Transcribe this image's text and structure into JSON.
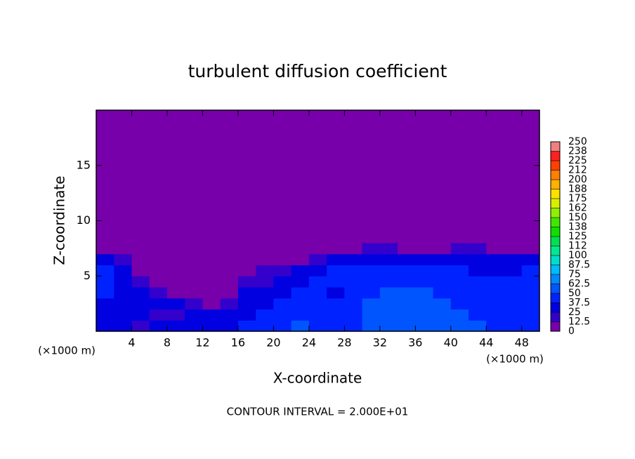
{
  "chart_data": {
    "type": "heatmap",
    "title": "turbulent diffusion coefficient",
    "x_label": "X-coordinate",
    "y_label": "Z-coordinate",
    "x_unit_label": "(×1000 m)",
    "footer": "CONTOUR INTERVAL = 2.000E+01",
    "xlim": [
      0,
      50
    ],
    "ylim": [
      0,
      20
    ],
    "xticks": [
      4,
      8,
      12,
      16,
      20,
      24,
      28,
      32,
      36,
      40,
      44,
      48
    ],
    "yticks": [
      5,
      10,
      15
    ],
    "xbins": [
      0,
      2,
      4,
      6,
      8,
      10,
      12,
      14,
      16,
      18,
      20,
      22,
      24,
      26,
      28,
      30,
      32,
      34,
      36,
      38,
      40,
      42,
      44,
      46,
      48,
      50
    ],
    "ybins": [
      0,
      1,
      2,
      3,
      4,
      5,
      6,
      7,
      8,
      20
    ],
    "z": [
      [
        30,
        25,
        20,
        25,
        30,
        35,
        30,
        35,
        40,
        45,
        45,
        50,
        45,
        45,
        45,
        50,
        55,
        60,
        55,
        55,
        50,
        50,
        45,
        45,
        45
      ],
      [
        35,
        30,
        25,
        20,
        20,
        30,
        25,
        30,
        35,
        40,
        45,
        45,
        40,
        40,
        45,
        50,
        55,
        55,
        60,
        50,
        50,
        45,
        45,
        40,
        45
      ],
      [
        35,
        30,
        30,
        25,
        25,
        20,
        10,
        15,
        30,
        35,
        40,
        45,
        40,
        40,
        45,
        50,
        50,
        60,
        60,
        50,
        45,
        45,
        40,
        40,
        40
      ],
      [
        40,
        35,
        30,
        20,
        10,
        5,
        5,
        10,
        25,
        30,
        35,
        40,
        40,
        35,
        45,
        45,
        50,
        50,
        55,
        45,
        45,
        40,
        40,
        40,
        40
      ],
      [
        45,
        30,
        15,
        10,
        5,
        5,
        5,
        5,
        20,
        20,
        30,
        35,
        40,
        40,
        40,
        45,
        45,
        45,
        45,
        40,
        40,
        40,
        40,
        40,
        40
      ],
      [
        40,
        25,
        5,
        5,
        0,
        0,
        0,
        0,
        10,
        15,
        20,
        30,
        35,
        40,
        40,
        40,
        40,
        45,
        40,
        40,
        40,
        35,
        35,
        35,
        40
      ],
      [
        30,
        15,
        0,
        0,
        0,
        0,
        0,
        0,
        0,
        0,
        5,
        10,
        20,
        25,
        30,
        35,
        35,
        35,
        30,
        35,
        30,
        30,
        30,
        30,
        30
      ],
      [
        0,
        0,
        0,
        0,
        0,
        0,
        0,
        0,
        0,
        0,
        0,
        0,
        0,
        5,
        10,
        15,
        15,
        10,
        0,
        10,
        15,
        20,
        10,
        5,
        0
      ],
      [
        0,
        0,
        0,
        0,
        0,
        0,
        0,
        0,
        0,
        0,
        0,
        0,
        0,
        0,
        0,
        0,
        0,
        0,
        0,
        0,
        0,
        0,
        0,
        0,
        0
      ]
    ],
    "levels": [
      0,
      12.5,
      25,
      37.5,
      50,
      62.5,
      75,
      87.5,
      100,
      {
        "value": 112.5,
        "label": "112"
      },
      125,
      {
        "value": 137.5,
        "label": "138"
      },
      150,
      {
        "value": 162.5,
        "label": "162"
      },
      175,
      {
        "value": 187.5,
        "label": "188"
      },
      200,
      {
        "value": 212.5,
        "label": "212"
      },
      225,
      {
        "value": 237.5,
        "label": "238"
      },
      250
    ],
    "colors": [
      "#7700aa",
      "#3300cc",
      "#0000e0",
      "#0022ff",
      "#0055ff",
      "#0088ff",
      "#00bbff",
      "#00ddcc",
      "#00e890",
      "#00e050",
      "#10e000",
      "#40e800",
      "#90f000",
      "#d8f000",
      "#ffe000",
      "#ffb000",
      "#ff8000",
      "#ff4000",
      "#ff2020",
      "#f08080"
    ]
  }
}
